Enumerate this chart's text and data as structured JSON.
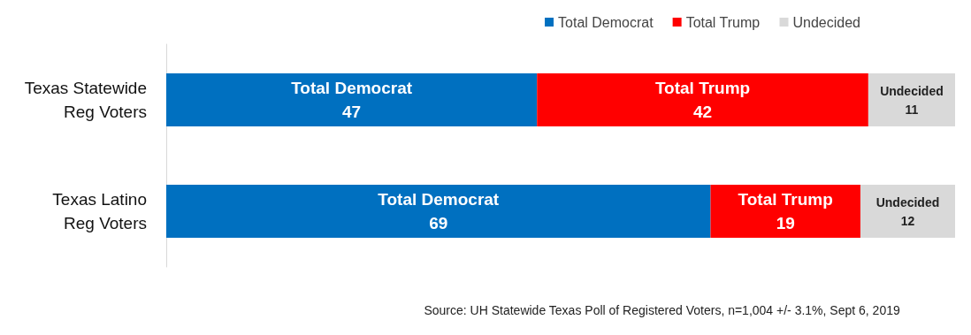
{
  "chart_data": {
    "type": "bar",
    "orientation": "horizontal",
    "stacked": true,
    "categories": [
      "Texas Statewide\nReg Voters",
      "Texas Latino\nReg Voters"
    ],
    "series": [
      {
        "name": "Total Democrat",
        "color": "#0070c0",
        "values": [
          47,
          69
        ]
      },
      {
        "name": "Total Trump",
        "color": "#ff0000",
        "values": [
          42,
          19
        ]
      },
      {
        "name": "Undecided",
        "color": "#d9d9d9",
        "values": [
          11,
          12
        ]
      }
    ],
    "xlim": [
      0,
      100
    ],
    "tick_labels": "y",
    "data_labels": true,
    "legend": "top right",
    "grid": false,
    "annotations": [
      "Source: UH Statewide Texas Poll of Registered Voters, n=1,004 +/- 3.1%, Sept 6, 2019"
    ]
  }
}
